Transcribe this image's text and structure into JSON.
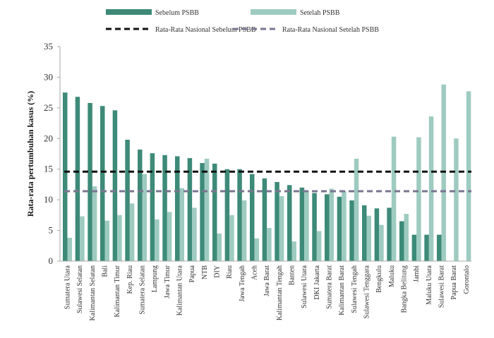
{
  "chart_data": {
    "type": "bar",
    "title": "",
    "xlabel": "",
    "ylabel": "Rata-rata pertumbuhan kasus (%)",
    "ylim": [
      0,
      35
    ],
    "yticks": [
      0,
      5,
      10,
      15,
      20,
      25,
      30,
      35
    ],
    "grid": false,
    "legend_position": "top",
    "categories": [
      "Sumatera Utara",
      "Sulawesi Selatan",
      "Kalimantan Selatan",
      "Bali",
      "Kalimantan Timur",
      "Kep. Riau",
      "Sumatera Selatan",
      "Lampung",
      "Jawa Timur",
      "Kalimantan Utara",
      "Papua",
      "NTB",
      "DIY",
      "Riau",
      "Jawa Tengah",
      "Aceh",
      "Jawa Barat",
      "Kalimantan Tengah",
      "Banten",
      "Sulawesi Utara",
      "DKI Jakarta",
      "Sumatera Barat",
      "Kalimantan Barat",
      "Sulawesi Tengah",
      "Sulawesi Tenggara",
      "Bengkulu",
      "Maluku",
      "Bangka Belitung",
      "Jambi",
      "Maluku Utara",
      "Sulawesi Barat",
      "Papua Barat",
      "Gorontalo"
    ],
    "series": [
      {
        "name": "Sebelum PSBB",
        "color": "#3d8a78",
        "values": [
          27.5,
          26.8,
          25.8,
          25.3,
          24.6,
          19.8,
          18.2,
          17.6,
          17.3,
          17.1,
          16.8,
          16.0,
          15.9,
          15.0,
          15.0,
          14.2,
          13.5,
          12.9,
          12.4,
          12.0,
          11.1,
          10.9,
          10.5,
          9.9,
          9.1,
          8.6,
          8.7,
          6.5,
          4.3,
          4.3,
          4.3,
          0,
          0
        ]
      },
      {
        "name": "Setelah PSBB",
        "color": "#9ecbc0",
        "values": [
          3.8,
          7.3,
          12.2,
          6.6,
          7.5,
          9.4,
          14.2,
          6.8,
          8.0,
          11.9,
          8.7,
          16.7,
          4.5,
          7.5,
          9.9,
          3.7,
          5.4,
          10.6,
          3.2,
          11.5,
          4.9,
          11.8,
          11.4,
          16.7,
          7.4,
          5.9,
          20.3,
          7.7,
          20.2,
          23.6,
          28.8,
          20.0,
          27.7
        ]
      }
    ],
    "reference_lines": [
      {
        "name": "Rata-Rata Nasional Sebelum PSBB",
        "value": 14.6,
        "color": "#111111"
      },
      {
        "name": "Rata-Rata Nasional Setelah PSBB",
        "value": 11.4,
        "color": "#7a7591"
      }
    ]
  }
}
